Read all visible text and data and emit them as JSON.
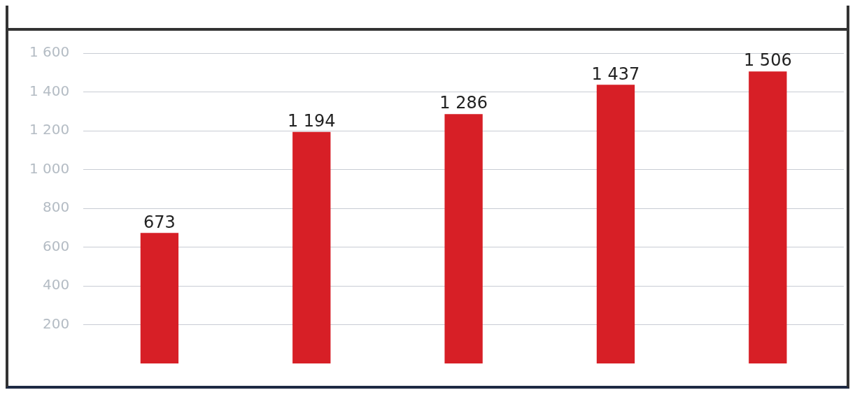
{
  "chart_data": {
    "type": "bar",
    "categories": [
      null,
      null,
      null,
      null,
      null
    ],
    "values": [
      673,
      1194,
      1286,
      1437,
      1506
    ],
    "value_labels": [
      "673",
      "1 194",
      "1 286",
      "1 437",
      "1 506"
    ],
    "color": "#d71f26",
    "ylim": [
      0,
      1730
    ],
    "yticks": [
      {
        "value": 200,
        "label": "200"
      },
      {
        "value": 400,
        "label": "400"
      },
      {
        "value": 600,
        "label": "600"
      },
      {
        "value": 800,
        "label": "800"
      },
      {
        "value": 1000,
        "label": "1 000"
      },
      {
        "value": 1200,
        "label": "1 200"
      },
      {
        "value": 1400,
        "label": "1 400"
      },
      {
        "value": 1600,
        "label": "1 600"
      }
    ],
    "grid": "y",
    "legend": false
  }
}
